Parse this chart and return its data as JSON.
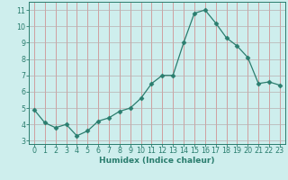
{
  "x": [
    0,
    1,
    2,
    3,
    4,
    5,
    6,
    7,
    8,
    9,
    10,
    11,
    12,
    13,
    14,
    15,
    16,
    17,
    18,
    19,
    20,
    21,
    22,
    23
  ],
  "y": [
    4.9,
    4.1,
    3.8,
    4.0,
    3.3,
    3.6,
    4.2,
    4.4,
    4.8,
    5.0,
    5.6,
    6.5,
    7.0,
    7.0,
    9.0,
    10.8,
    11.0,
    10.2,
    9.3,
    8.8,
    8.1,
    6.5,
    6.6,
    6.4
  ],
  "line_color": "#2a7d6e",
  "marker": "D",
  "marker_size": 2.5,
  "bg_color": "#ceeeed",
  "grid_color": "#b8b0b0",
  "xlabel": "Humidex (Indice chaleur)",
  "xlim": [
    -0.5,
    23.5
  ],
  "ylim": [
    2.8,
    11.5
  ],
  "yticks": [
    3,
    4,
    5,
    6,
    7,
    8,
    9,
    10,
    11
  ],
  "xticks": [
    0,
    1,
    2,
    3,
    4,
    5,
    6,
    7,
    8,
    9,
    10,
    11,
    12,
    13,
    14,
    15,
    16,
    17,
    18,
    19,
    20,
    21,
    22,
    23
  ],
  "label_fontsize": 6.5,
  "tick_fontsize": 5.8
}
